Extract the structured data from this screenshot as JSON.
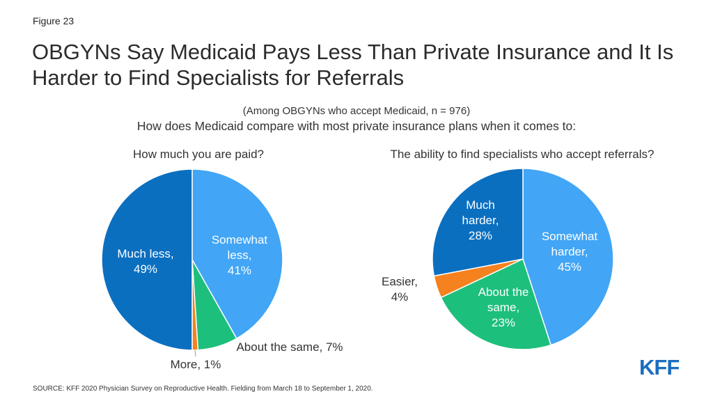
{
  "figure_label": "Figure 23",
  "title": "OBGYNs Say Medicaid Pays Less Than Private Insurance and It Is Harder to Find Specialists for Referrals",
  "subtitle": "(Among  OBGYNs  who accept Medicaid, n = 976)",
  "question": "How does Medicaid compare with most private insurance plans when it comes to:",
  "source": "SOURCE: KFF 2020 Physician Survey on Reproductive Health. Fielding from March 18 to September 1, 2020.",
  "logo": "KFF",
  "chart_data": [
    {
      "type": "pie",
      "title": "How much you are paid?",
      "slices": [
        {
          "label": "Somewhat less,",
          "pct_label": "41%",
          "value": 41,
          "color": "#42a5f5"
        },
        {
          "label": "About the same, 7%",
          "pct_label": "",
          "value": 7,
          "color": "#1dbf7c"
        },
        {
          "label": "More, 1%",
          "pct_label": "",
          "value": 1,
          "color": "#f5811f"
        },
        {
          "label": "Much less,",
          "pct_label": "49%",
          "value": 49,
          "color": "#0b6fc0"
        }
      ]
    },
    {
      "type": "pie",
      "title": "The ability to find specialists who accept referrals?",
      "slices": [
        {
          "label": "Somewhat harder,",
          "pct_label": "45%",
          "value": 45,
          "color": "#42a5f5"
        },
        {
          "label": "About the same,",
          "pct_label": "23%",
          "value": 23,
          "color": "#1dbf7c"
        },
        {
          "label": "Easier,",
          "pct_label": "4%",
          "value": 4,
          "color": "#f5811f"
        },
        {
          "label": "Much harder,",
          "pct_label": "28%",
          "value": 28,
          "color": "#0b6fc0"
        }
      ]
    }
  ]
}
